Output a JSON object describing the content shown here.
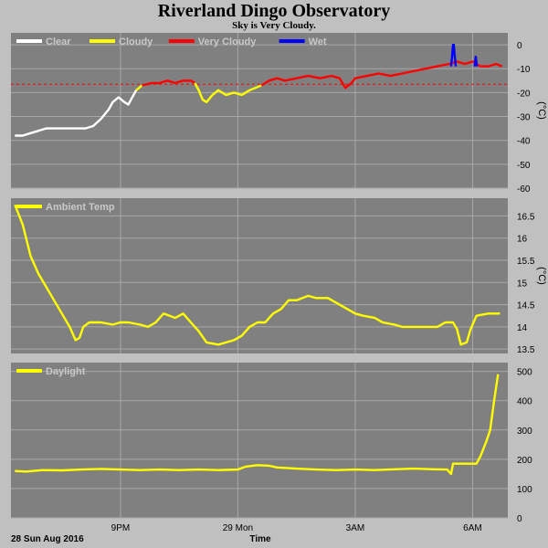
{
  "header": {
    "title": "Riverland Dingo Observatory",
    "subtitle": "Sky is Very Cloudy."
  },
  "footer": {
    "date_label": "28 Sun Aug 2016",
    "x_axis_title": "Time"
  },
  "colors": {
    "panel_bg": "#808080",
    "frame": "#c0c0c0",
    "grid": "#a8a8a8",
    "clear": "#ffffff",
    "cloudy": "#ffff00",
    "very_cloudy": "#ff0000",
    "wet": "#0000ff",
    "threshold": "#ff0000"
  },
  "chart_data": [
    {
      "type": "line",
      "ylabel": "(°C)",
      "ylim": [
        -60,
        5
      ],
      "yticks": [
        0,
        -10,
        -20,
        -30,
        -40,
        -50,
        -60
      ],
      "xlim": [
        18.2,
        30.9
      ],
      "xticks": [
        {
          "value": 21,
          "label": "9PM"
        },
        {
          "value": 24,
          "label": "29 Mon"
        },
        {
          "value": 27,
          "label": "3AM"
        },
        {
          "value": 30,
          "label": "6AM"
        }
      ],
      "threshold": -16.5,
      "grid": true,
      "legend": "top-left",
      "series": [
        {
          "name": "Clear",
          "color": "#ffffff",
          "points": [
            [
              18.3,
              -38
            ],
            [
              18.5,
              -38
            ],
            [
              18.7,
              -37
            ],
            [
              18.9,
              -36
            ],
            [
              19.1,
              -35
            ],
            [
              19.4,
              -35
            ],
            [
              19.7,
              -35
            ],
            [
              19.9,
              -35
            ],
            [
              20.1,
              -35
            ],
            [
              20.3,
              -34
            ],
            [
              20.5,
              -31
            ],
            [
              20.7,
              -27
            ],
            [
              20.8,
              -24
            ],
            [
              20.95,
              -22
            ],
            [
              21.1,
              -24
            ],
            [
              21.2,
              -25
            ],
            [
              21.3,
              -22
            ],
            [
              21.4,
              -19
            ]
          ]
        },
        {
          "name": "Cloudy",
          "color": "#ffff00",
          "points": [
            [
              21.4,
              -19
            ],
            [
              21.55,
              -17
            ]
          ]
        },
        {
          "name": "Very Cloudy",
          "color": "#ff0000",
          "points": [
            [
              21.55,
              -17
            ],
            [
              21.8,
              -16
            ],
            [
              22.0,
              -16
            ],
            [
              22.2,
              -15
            ],
            [
              22.4,
              -16
            ],
            [
              22.6,
              -15
            ],
            [
              22.8,
              -15
            ],
            [
              22.9,
              -16
            ]
          ]
        },
        {
          "name": "Cloudy",
          "color": "#ffff00",
          "points": [
            [
              22.9,
              -16
            ],
            [
              23.0,
              -19
            ],
            [
              23.1,
              -23
            ],
            [
              23.2,
              -24
            ],
            [
              23.35,
              -21
            ],
            [
              23.5,
              -19
            ],
            [
              23.7,
              -21
            ],
            [
              23.9,
              -20
            ],
            [
              24.1,
              -21
            ],
            [
              24.3,
              -19
            ],
            [
              24.45,
              -18
            ],
            [
              24.6,
              -17
            ]
          ]
        },
        {
          "name": "Very Cloudy",
          "color": "#ff0000",
          "points": [
            [
              24.6,
              -17
            ],
            [
              24.8,
              -15
            ],
            [
              25.0,
              -14
            ],
            [
              25.2,
              -15
            ],
            [
              25.5,
              -14
            ],
            [
              25.8,
              -13
            ],
            [
              26.1,
              -14
            ],
            [
              26.4,
              -13
            ],
            [
              26.6,
              -14
            ],
            [
              26.75,
              -18
            ],
            [
              26.9,
              -16
            ],
            [
              27.0,
              -14
            ],
            [
              27.3,
              -13
            ],
            [
              27.6,
              -12
            ],
            [
              27.9,
              -13
            ],
            [
              28.2,
              -12
            ],
            [
              28.5,
              -11
            ],
            [
              28.8,
              -10
            ],
            [
              29.1,
              -9
            ],
            [
              29.4,
              -8
            ],
            [
              29.6,
              -7
            ],
            [
              29.8,
              -8
            ],
            [
              30.0,
              -7
            ],
            [
              30.2,
              -9
            ],
            [
              30.4,
              -9
            ],
            [
              30.6,
              -8
            ],
            [
              30.75,
              -9
            ]
          ]
        },
        {
          "name": "Wet",
          "color": "#0000ff",
          "points": [
            [
              29.45,
              -9
            ],
            [
              29.48,
              -4
            ],
            [
              29.5,
              0
            ],
            [
              29.52,
              0
            ],
            [
              29.54,
              -4
            ],
            [
              29.57,
              -9
            ]
          ]
        },
        {
          "name": "Wet",
          "color": "#0000ff",
          "points": [
            [
              30.05,
              -9
            ],
            [
              30.08,
              -5
            ],
            [
              30.11,
              -9
            ]
          ]
        }
      ],
      "legend_entries": [
        {
          "label": "Clear",
          "color": "#ffffff"
        },
        {
          "label": "Cloudy",
          "color": "#ffff00"
        },
        {
          "label": "Very Cloudy",
          "color": "#ff0000"
        },
        {
          "label": "Wet",
          "color": "#0000ff"
        }
      ]
    },
    {
      "type": "line",
      "ylabel": "(°C)",
      "ylim": [
        13.4,
        16.9
      ],
      "yticks": [
        13.5,
        14.0,
        14.5,
        15.0,
        15.5,
        16.0,
        16.5
      ],
      "xlim": [
        18.2,
        30.9
      ],
      "grid": true,
      "legend": "top-left",
      "series": [
        {
          "name": "Ambient Temp",
          "color": "#ffff00",
          "points": [
            [
              18.3,
              16.75
            ],
            [
              18.5,
              16.3
            ],
            [
              18.7,
              15.6
            ],
            [
              18.9,
              15.2
            ],
            [
              19.1,
              14.9
            ],
            [
              19.3,
              14.6
            ],
            [
              19.5,
              14.3
            ],
            [
              19.7,
              14.0
            ],
            [
              19.85,
              13.7
            ],
            [
              19.95,
              13.75
            ],
            [
              20.05,
              14.0
            ],
            [
              20.2,
              14.1
            ],
            [
              20.5,
              14.1
            ],
            [
              20.8,
              14.05
            ],
            [
              21.0,
              14.1
            ],
            [
              21.2,
              14.1
            ],
            [
              21.5,
              14.05
            ],
            [
              21.7,
              14.0
            ],
            [
              21.9,
              14.1
            ],
            [
              22.1,
              14.3
            ],
            [
              22.4,
              14.2
            ],
            [
              22.6,
              14.3
            ],
            [
              22.8,
              14.1
            ],
            [
              23.0,
              13.9
            ],
            [
              23.2,
              13.65
            ],
            [
              23.5,
              13.6
            ],
            [
              23.7,
              13.65
            ],
            [
              23.9,
              13.7
            ],
            [
              24.1,
              13.8
            ],
            [
              24.3,
              14.0
            ],
            [
              24.5,
              14.1
            ],
            [
              24.7,
              14.1
            ],
            [
              24.9,
              14.3
            ],
            [
              25.1,
              14.4
            ],
            [
              25.3,
              14.6
            ],
            [
              25.5,
              14.6
            ],
            [
              25.8,
              14.7
            ],
            [
              26.0,
              14.65
            ],
            [
              26.3,
              14.65
            ],
            [
              26.6,
              14.5
            ],
            [
              26.8,
              14.4
            ],
            [
              27.0,
              14.3
            ],
            [
              27.2,
              14.25
            ],
            [
              27.5,
              14.2
            ],
            [
              27.7,
              14.1
            ],
            [
              28.0,
              14.05
            ],
            [
              28.2,
              14.0
            ],
            [
              28.5,
              14.0
            ],
            [
              28.8,
              14.0
            ],
            [
              29.1,
              14.0
            ],
            [
              29.3,
              14.1
            ],
            [
              29.5,
              14.1
            ],
            [
              29.6,
              13.95
            ],
            [
              29.7,
              13.6
            ],
            [
              29.85,
              13.65
            ],
            [
              29.95,
              13.95
            ],
            [
              30.1,
              14.25
            ],
            [
              30.4,
              14.3
            ],
            [
              30.7,
              14.3
            ]
          ]
        }
      ],
      "legend_entries": [
        {
          "label": "Ambient Temp",
          "color": "#ffff00"
        }
      ]
    },
    {
      "type": "line",
      "ylabel": "",
      "ylim": [
        0,
        530
      ],
      "yticks": [
        0,
        100,
        200,
        300,
        400,
        500
      ],
      "xlim": [
        18.2,
        30.9
      ],
      "grid": true,
      "legend": "top-left",
      "series": [
        {
          "name": "Daylight",
          "color": "#ffff00",
          "points": [
            [
              18.3,
              160
            ],
            [
              18.6,
              158
            ],
            [
              19.0,
              163
            ],
            [
              19.5,
              162
            ],
            [
              20.0,
              165
            ],
            [
              20.5,
              167
            ],
            [
              21.0,
              165
            ],
            [
              21.5,
              163
            ],
            [
              22.0,
              165
            ],
            [
              22.5,
              163
            ],
            [
              23.0,
              165
            ],
            [
              23.5,
              163
            ],
            [
              24.0,
              165
            ],
            [
              24.2,
              175
            ],
            [
              24.5,
              180
            ],
            [
              24.8,
              178
            ],
            [
              25.0,
              172
            ],
            [
              25.5,
              168
            ],
            [
              26.0,
              165
            ],
            [
              26.5,
              163
            ],
            [
              27.0,
              165
            ],
            [
              27.5,
              163
            ],
            [
              28.0,
              166
            ],
            [
              28.5,
              168
            ],
            [
              29.0,
              166
            ],
            [
              29.35,
              165
            ],
            [
              29.45,
              150
            ],
            [
              29.5,
              185
            ],
            [
              29.8,
              185
            ],
            [
              30.1,
              185
            ],
            [
              30.2,
              210
            ],
            [
              30.35,
              260
            ],
            [
              30.45,
              300
            ],
            [
              30.55,
              400
            ],
            [
              30.65,
              490
            ]
          ]
        }
      ],
      "legend_entries": [
        {
          "label": "Daylight",
          "color": "#ffff00"
        }
      ]
    }
  ]
}
